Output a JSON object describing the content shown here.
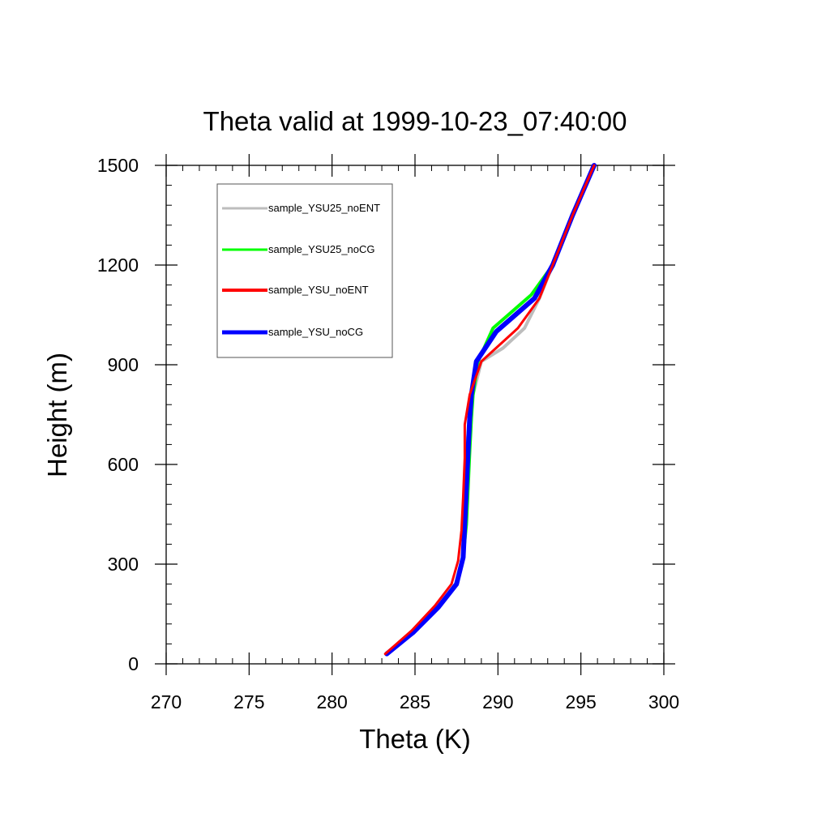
{
  "chart_data": {
    "type": "line",
    "title": "Theta valid at 1999-10-23_07:40:00",
    "xlabel": "Theta (K)",
    "ylabel": "Height (m)",
    "xlim": [
      270,
      300
    ],
    "ylim": [
      0,
      1500
    ],
    "xticks": [
      270,
      275,
      280,
      285,
      290,
      295,
      300
    ],
    "yticks": [
      0,
      300,
      600,
      900,
      1200,
      1500
    ],
    "xtick_labels": [
      "270",
      "275",
      "280",
      "285",
      "290",
      "295",
      "300"
    ],
    "ytick_labels": [
      "0",
      "300",
      "600",
      "900",
      "1200",
      "1500"
    ],
    "grid": false,
    "legend_position": "top-left",
    "series": [
      {
        "name": "sample_YSU25_noENT",
        "color": "#bdbdbd",
        "points": [
          [
            283.3,
            30
          ],
          [
            284.9,
            95
          ],
          [
            286.4,
            170
          ],
          [
            287.5,
            240
          ],
          [
            287.9,
            320
          ],
          [
            288.0,
            420
          ],
          [
            288.1,
            530
          ],
          [
            288.1,
            640
          ],
          [
            288.3,
            740
          ],
          [
            288.5,
            810
          ],
          [
            289.0,
            910
          ],
          [
            290.3,
            950
          ],
          [
            291.6,
            1010
          ],
          [
            292.5,
            1100
          ],
          [
            293.3,
            1200
          ],
          [
            294.5,
            1350
          ],
          [
            295.8,
            1500
          ]
        ]
      },
      {
        "name": "sample_YSU25_noCG",
        "color": "#00ff00",
        "points": [
          [
            283.3,
            30
          ],
          [
            284.9,
            95
          ],
          [
            286.4,
            170
          ],
          [
            287.5,
            240
          ],
          [
            287.9,
            320
          ],
          [
            288.1,
            420
          ],
          [
            288.2,
            530
          ],
          [
            288.3,
            640
          ],
          [
            288.4,
            740
          ],
          [
            288.5,
            810
          ],
          [
            288.8,
            910
          ],
          [
            289.7,
            1010
          ],
          [
            292.0,
            1110
          ],
          [
            293.3,
            1200
          ],
          [
            294.5,
            1350
          ],
          [
            295.8,
            1500
          ]
        ]
      },
      {
        "name": "sample_YSU_noENT",
        "color": "#ff0000",
        "points": [
          [
            283.2,
            30
          ],
          [
            284.8,
            100
          ],
          [
            286.2,
            175
          ],
          [
            287.2,
            240
          ],
          [
            287.6,
            310
          ],
          [
            287.8,
            400
          ],
          [
            287.9,
            500
          ],
          [
            288.0,
            620
          ],
          [
            288.0,
            720
          ],
          [
            288.3,
            810
          ],
          [
            289.0,
            910
          ],
          [
            291.2,
            1010
          ],
          [
            292.5,
            1100
          ],
          [
            293.3,
            1200
          ],
          [
            294.5,
            1350
          ],
          [
            295.8,
            1500
          ]
        ]
      },
      {
        "name": "sample_YSU_noCG",
        "color": "#0000ff",
        "points": [
          [
            283.3,
            30
          ],
          [
            284.9,
            95
          ],
          [
            286.4,
            170
          ],
          [
            287.5,
            240
          ],
          [
            287.9,
            320
          ],
          [
            288.0,
            420
          ],
          [
            288.1,
            530
          ],
          [
            288.2,
            640
          ],
          [
            288.3,
            740
          ],
          [
            288.4,
            810
          ],
          [
            288.7,
            910
          ],
          [
            289.9,
            1000
          ],
          [
            292.2,
            1100
          ],
          [
            293.3,
            1200
          ],
          [
            294.5,
            1350
          ],
          [
            295.8,
            1500
          ]
        ]
      }
    ]
  }
}
